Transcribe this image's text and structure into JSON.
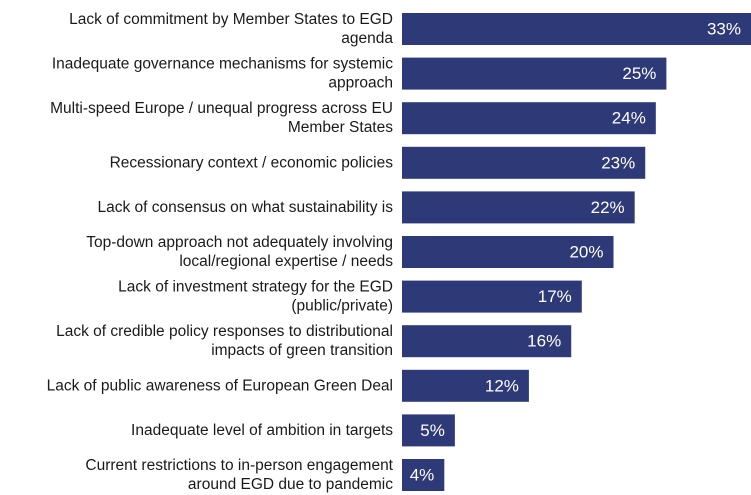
{
  "chart_data": {
    "type": "bar",
    "orientation": "horizontal",
    "categories": [
      [
        "Lack of commitment by Member States to EGD",
        "agenda"
      ],
      [
        "Inadequate governance mechanisms for systemic",
        "approach"
      ],
      [
        "Multi-speed Europe / unequal progress across EU",
        "Member States"
      ],
      [
        "Recessionary context / economic policies"
      ],
      [
        "Lack of consensus on what sustainability is"
      ],
      [
        "Top-down approach not adequately involving",
        "local/regional expertise / needs"
      ],
      [
        "Lack of investment strategy for the EGD",
        "(public/private)"
      ],
      [
        "Lack of credible policy responses to distributional",
        "impacts of green transition"
      ],
      [
        "Lack of public awareness of European Green Deal"
      ],
      [
        "Inadequate level of ambition in targets"
      ],
      [
        "Current restrictions to in-person engagement",
        "around EGD due to pandemic"
      ]
    ],
    "values": [
      33,
      25,
      24,
      23,
      22,
      20,
      17,
      16,
      12,
      5,
      4
    ],
    "value_labels": [
      "33%",
      "25%",
      "24%",
      "23%",
      "22%",
      "20%",
      "17%",
      "16%",
      "12%",
      "5%",
      "4%"
    ],
    "unit": "%",
    "xlim": [
      0,
      33
    ],
    "bar_color": "#2e3a78",
    "label_color": "#ffffff",
    "grid": false,
    "legend": "none"
  }
}
